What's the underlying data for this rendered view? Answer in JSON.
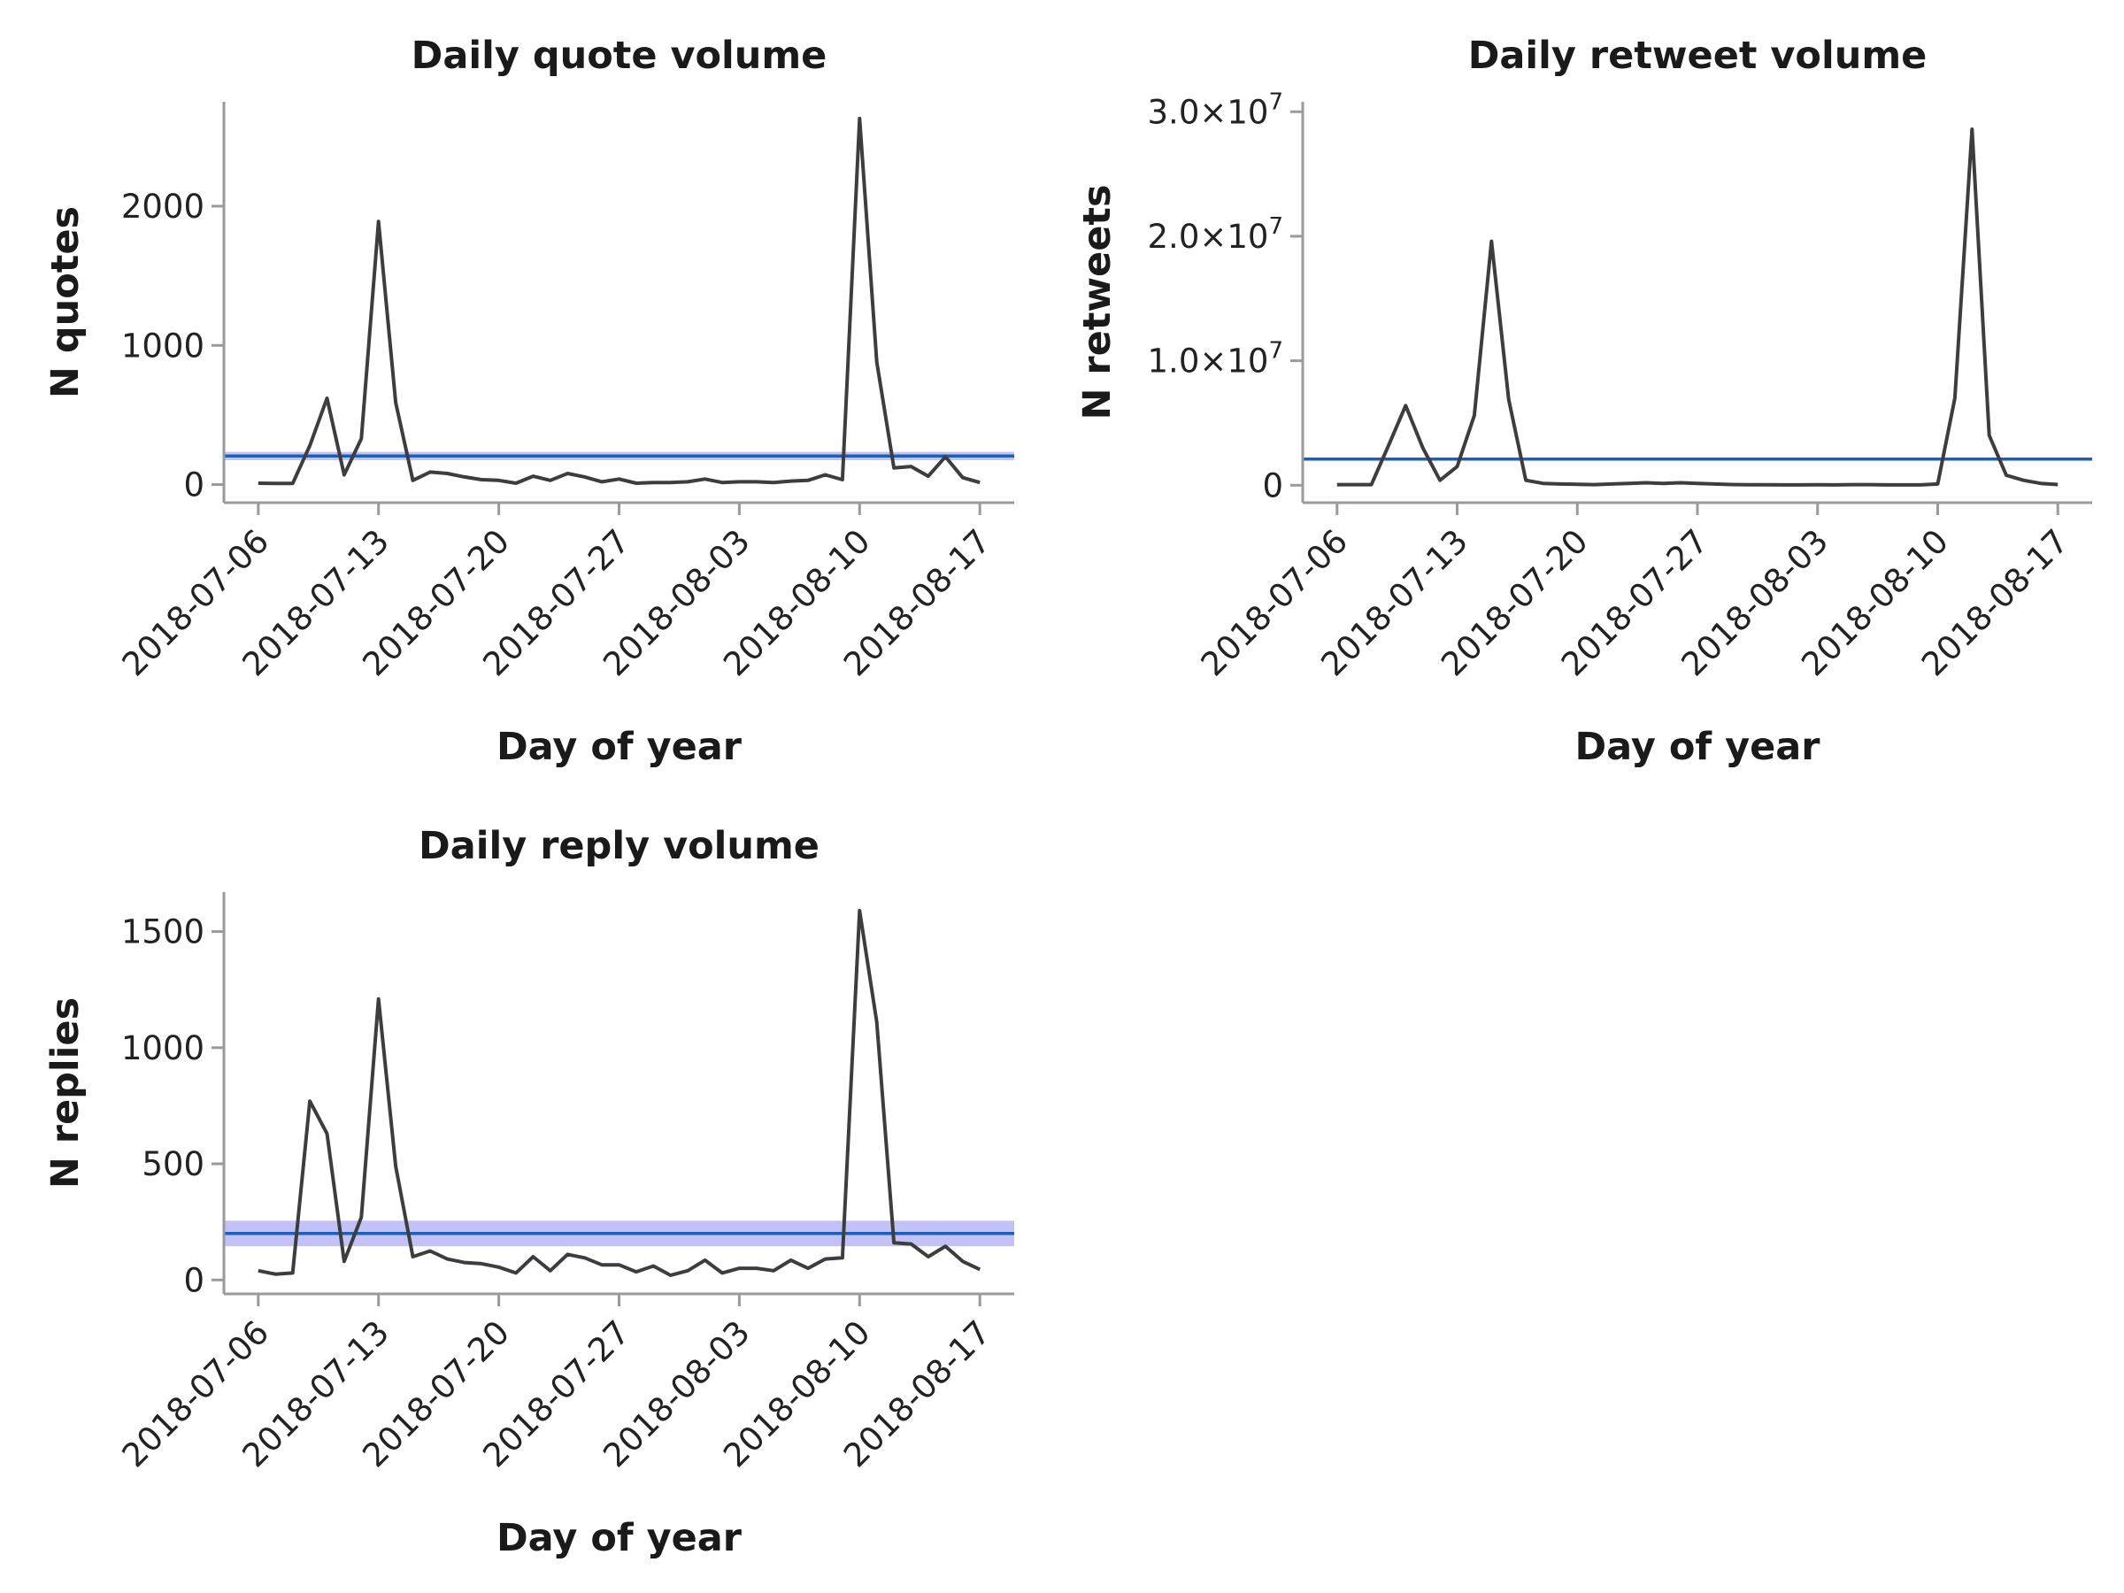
{
  "colors": {
    "series": "#3d3d3d",
    "reference_line": "#1c5fb8",
    "reference_band": "#9a9af0",
    "axis": "#9a9a9a"
  },
  "x_ticks": [
    "2018-07-06",
    "2018-07-13",
    "2018-07-20",
    "2018-07-27",
    "2018-08-03",
    "2018-08-10",
    "2018-08-17"
  ],
  "chart_data": [
    {
      "type": "line",
      "title": "Daily quote volume",
      "xlabel": "Day of year",
      "ylabel": "N quotes",
      "xlim": [
        "2018-07-04",
        "2018-08-19"
      ],
      "ylim": [
        -130,
        2750
      ],
      "yticks": [
        0,
        1000,
        2000
      ],
      "ytick_labels": [
        "0",
        "1000",
        "2000"
      ],
      "reference_line": {
        "value": 205,
        "band": [
          175,
          235
        ]
      },
      "grid": false,
      "legend": "none",
      "series": [
        {
          "x": [
            "2018-07-06",
            "2018-07-07",
            "2018-07-08",
            "2018-07-09",
            "2018-07-10",
            "2018-07-11",
            "2018-07-12",
            "2018-07-13",
            "2018-07-14",
            "2018-07-15",
            "2018-07-16",
            "2018-07-17",
            "2018-07-18",
            "2018-07-19",
            "2018-07-20",
            "2018-07-21",
            "2018-07-22",
            "2018-07-23",
            "2018-07-24",
            "2018-07-25",
            "2018-07-26",
            "2018-07-27",
            "2018-07-28",
            "2018-07-29",
            "2018-07-30",
            "2018-07-31",
            "2018-08-01",
            "2018-08-02",
            "2018-08-03",
            "2018-08-04",
            "2018-08-05",
            "2018-08-06",
            "2018-08-07",
            "2018-08-08",
            "2018-08-09",
            "2018-08-10",
            "2018-08-11",
            "2018-08-12",
            "2018-08-13",
            "2018-08-14",
            "2018-08-15",
            "2018-08-16",
            "2018-08-17"
          ],
          "values": [
            10,
            8,
            8,
            280,
            620,
            70,
            330,
            1890,
            590,
            30,
            90,
            80,
            55,
            35,
            30,
            10,
            60,
            30,
            80,
            55,
            20,
            40,
            10,
            15,
            15,
            20,
            40,
            15,
            20,
            20,
            15,
            25,
            30,
            70,
            35,
            2630,
            880,
            120,
            130,
            60,
            200,
            50,
            15
          ]
        }
      ]
    },
    {
      "type": "line",
      "title": "Daily retweet volume",
      "xlabel": "Day of year",
      "ylabel": "N retweets",
      "xlim": [
        "2018-07-04",
        "2018-08-19"
      ],
      "ylim": [
        -1400000,
        30800000
      ],
      "yticks": [
        0,
        10000000,
        20000000,
        30000000
      ],
      "ytick_labels": [
        "0",
        "1.0×10",
        "2.0×10",
        "3.0×10"
      ],
      "ytick_exponents": [
        "",
        "7",
        "7",
        "7"
      ],
      "reference_line": {
        "value": 2100000
      },
      "grid": false,
      "legend": "none",
      "series": [
        {
          "x": [
            "2018-07-06",
            "2018-07-07",
            "2018-07-08",
            "2018-07-09",
            "2018-07-10",
            "2018-07-11",
            "2018-07-12",
            "2018-07-13",
            "2018-07-14",
            "2018-07-15",
            "2018-07-16",
            "2018-07-17",
            "2018-07-18",
            "2018-07-19",
            "2018-07-20",
            "2018-07-21",
            "2018-07-22",
            "2018-07-23",
            "2018-07-24",
            "2018-07-25",
            "2018-07-26",
            "2018-07-27",
            "2018-07-28",
            "2018-07-29",
            "2018-07-30",
            "2018-07-31",
            "2018-08-01",
            "2018-08-02",
            "2018-08-03",
            "2018-08-04",
            "2018-08-05",
            "2018-08-06",
            "2018-08-07",
            "2018-08-08",
            "2018-08-09",
            "2018-08-10",
            "2018-08-11",
            "2018-08-12",
            "2018-08-13",
            "2018-08-14",
            "2018-08-15",
            "2018-08-16",
            "2018-08-17"
          ],
          "values": [
            50000,
            50000,
            50000,
            3200000,
            6400000,
            3000000,
            400000,
            1500000,
            5600000,
            19600000,
            6900000,
            400000,
            150000,
            100000,
            80000,
            50000,
            100000,
            150000,
            200000,
            150000,
            200000,
            150000,
            100000,
            60000,
            40000,
            40000,
            30000,
            30000,
            40000,
            30000,
            50000,
            50000,
            30000,
            30000,
            30000,
            100000,
            7000000,
            28600000,
            4000000,
            800000,
            400000,
            150000,
            60000
          ]
        }
      ]
    },
    {
      "type": "line",
      "title": "Daily reply volume",
      "xlabel": "Day of year",
      "ylabel": "N replies",
      "xlim": [
        "2018-07-04",
        "2018-08-19"
      ],
      "ylim": [
        -60,
        1670
      ],
      "yticks": [
        0,
        500,
        1000,
        1500
      ],
      "ytick_labels": [
        "0",
        "500",
        "1000",
        "1500"
      ],
      "reference_line": {
        "value": 200,
        "band": [
          145,
          255
        ]
      },
      "grid": false,
      "legend": "none",
      "series": [
        {
          "x": [
            "2018-07-06",
            "2018-07-07",
            "2018-07-08",
            "2018-07-09",
            "2018-07-10",
            "2018-07-11",
            "2018-07-12",
            "2018-07-13",
            "2018-07-14",
            "2018-07-15",
            "2018-07-16",
            "2018-07-17",
            "2018-07-18",
            "2018-07-19",
            "2018-07-20",
            "2018-07-21",
            "2018-07-22",
            "2018-07-23",
            "2018-07-24",
            "2018-07-25",
            "2018-07-26",
            "2018-07-27",
            "2018-07-28",
            "2018-07-29",
            "2018-07-30",
            "2018-07-31",
            "2018-08-01",
            "2018-08-02",
            "2018-08-03",
            "2018-08-04",
            "2018-08-05",
            "2018-08-06",
            "2018-08-07",
            "2018-08-08",
            "2018-08-09",
            "2018-08-10",
            "2018-08-11",
            "2018-08-12",
            "2018-08-13",
            "2018-08-14",
            "2018-08-15",
            "2018-08-16",
            "2018-08-17"
          ],
          "values": [
            40,
            25,
            30,
            770,
            630,
            80,
            270,
            1210,
            490,
            100,
            125,
            90,
            75,
            70,
            55,
            30,
            100,
            40,
            110,
            95,
            65,
            65,
            35,
            60,
            20,
            40,
            85,
            30,
            50,
            50,
            40,
            85,
            50,
            90,
            95,
            1590,
            1110,
            160,
            155,
            100,
            145,
            80,
            45
          ]
        }
      ]
    }
  ]
}
